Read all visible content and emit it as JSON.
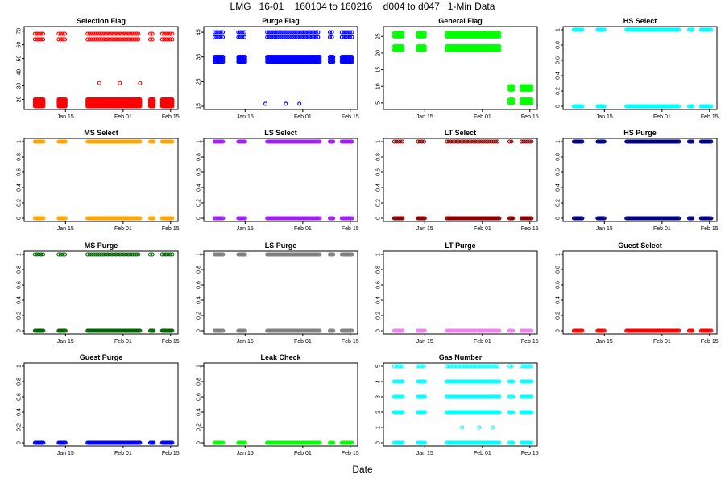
{
  "page_title": "LMG   16-01    160104 to 160216    d004 to d047   1-Min Data",
  "x_axis_label": "Date",
  "x_ticks": [
    {
      "label": "Jan 15",
      "value": 11
    },
    {
      "label": "Feb 01",
      "value": 28
    },
    {
      "label": "Feb 15",
      "value": 42
    }
  ],
  "x_range": [
    0,
    43
  ],
  "chart_data": [
    {
      "type": "scatter",
      "title": "Selection Flag",
      "color": "#ff0000",
      "ylim": [
        15,
        71
      ],
      "yticks": [
        20,
        30,
        40,
        50,
        60,
        70
      ],
      "levels": [
        {
          "y": 15,
          "dense": true
        },
        {
          "y": 16,
          "dense": true
        },
        {
          "y": 17,
          "dense": true
        },
        {
          "y": 18,
          "dense": true
        },
        {
          "y": 19,
          "dense": true
        },
        {
          "y": 20,
          "dense": true
        },
        {
          "y": 64,
          "dense": false
        },
        {
          "y": 68,
          "dense": false
        }
      ],
      "isolated": [
        [
          21,
          32
        ],
        [
          27,
          32
        ],
        [
          33,
          32
        ]
      ]
    },
    {
      "type": "scatter",
      "title": "Purge Flag",
      "color": "#0000ff",
      "ylim": [
        15,
        46
      ],
      "yticks": [
        15,
        25,
        35,
        45
      ],
      "levels": [
        {
          "y": 33,
          "dense": true
        },
        {
          "y": 34,
          "dense": true
        },
        {
          "y": 35,
          "dense": true
        },
        {
          "y": 43,
          "dense": false
        },
        {
          "y": 45,
          "dense": false
        }
      ],
      "isolated": [
        [
          17,
          16
        ],
        [
          23,
          16
        ],
        [
          27,
          16
        ]
      ]
    },
    {
      "type": "scatter",
      "title": "General Flag",
      "color": "#00ff00",
      "ylim": [
        4,
        27
      ],
      "yticks": [
        5,
        10,
        15,
        20,
        25
      ],
      "levels": [
        {
          "y": 21,
          "dense": true
        },
        {
          "y": 22,
          "dense": true
        },
        {
          "y": 25,
          "dense": true
        },
        {
          "y": 26,
          "dense": true
        }
      ],
      "late_levels": [
        5,
        6,
        9,
        10
      ],
      "isolated": []
    },
    {
      "type": "scatter",
      "title": "HS Select",
      "color": "#00ffff",
      "ylim": [
        0,
        1
      ],
      "yticks": [
        0,
        0.2,
        0.4,
        0.6,
        0.8,
        1
      ],
      "levels": [
        {
          "y": 0,
          "dense": true
        },
        {
          "y": 1,
          "dense": true
        }
      ],
      "isolated": []
    },
    {
      "type": "scatter",
      "title": "MS Select",
      "color": "#ffa500",
      "ylim": [
        0,
        1
      ],
      "yticks": [
        0,
        0.2,
        0.4,
        0.6,
        0.8,
        1
      ],
      "levels": [
        {
          "y": 0,
          "dense": true
        },
        {
          "y": 1,
          "dense": true
        }
      ],
      "isolated": []
    },
    {
      "type": "scatter",
      "title": "LS Select",
      "color": "#a020f0",
      "ylim": [
        0,
        1
      ],
      "yticks": [
        0,
        0.2,
        0.4,
        0.6,
        0.8,
        1
      ],
      "levels": [
        {
          "y": 0,
          "dense": true
        },
        {
          "y": 1,
          "dense": true
        }
      ],
      "isolated": []
    },
    {
      "type": "scatter",
      "title": "LT Select",
      "color": "#8b0000",
      "ylim": [
        0,
        1
      ],
      "yticks": [
        0,
        0.2,
        0.4,
        0.6,
        0.8,
        1
      ],
      "levels": [
        {
          "y": 0,
          "dense": true
        },
        {
          "y": 1,
          "dense": false
        }
      ],
      "isolated": []
    },
    {
      "type": "scatter",
      "title": "HS Purge",
      "color": "#000080",
      "ylim": [
        0,
        1
      ],
      "yticks": [
        0,
        0.2,
        0.4,
        0.6,
        0.8,
        1
      ],
      "levels": [
        {
          "y": 0,
          "dense": true
        },
        {
          "y": 1,
          "dense": true
        }
      ],
      "isolated": []
    },
    {
      "type": "scatter",
      "title": "MS Purge",
      "color": "#006400",
      "ylim": [
        0,
        1
      ],
      "yticks": [
        0,
        0.2,
        0.4,
        0.6,
        0.8,
        1
      ],
      "levels": [
        {
          "y": 0,
          "dense": true
        },
        {
          "y": 1,
          "dense": false
        }
      ],
      "isolated": []
    },
    {
      "type": "scatter",
      "title": "LS Purge",
      "color": "#808080",
      "ylim": [
        0,
        1
      ],
      "yticks": [
        0,
        0.2,
        0.4,
        0.6,
        0.8,
        1
      ],
      "levels": [
        {
          "y": 0,
          "dense": true
        },
        {
          "y": 1,
          "dense": true
        }
      ],
      "isolated": []
    },
    {
      "type": "scatter",
      "title": "LT Purge",
      "color": "#ee82ee",
      "ylim": [
        0,
        1
      ],
      "yticks": [
        0,
        0.2,
        0.4,
        0.6,
        0.8,
        1
      ],
      "levels": [
        {
          "y": 0,
          "dense": true
        }
      ],
      "isolated": []
    },
    {
      "type": "scatter",
      "title": "Guest Select",
      "color": "#ff0000",
      "ylim": [
        0,
        1
      ],
      "yticks": [
        0,
        0.2,
        0.4,
        0.6,
        0.8,
        1
      ],
      "levels": [
        {
          "y": 0,
          "dense": true
        }
      ],
      "isolated": []
    },
    {
      "type": "scatter",
      "title": "Guest Purge",
      "color": "#0000ff",
      "ylim": [
        0,
        1
      ],
      "yticks": [
        0,
        0.2,
        0.4,
        0.6,
        0.8,
        1
      ],
      "levels": [
        {
          "y": 0,
          "dense": true
        }
      ],
      "isolated": []
    },
    {
      "type": "scatter",
      "title": "Leak Check",
      "color": "#00ff00",
      "ylim": [
        0,
        1
      ],
      "yticks": [
        0,
        0.2,
        0.4,
        0.6,
        0.8,
        1
      ],
      "levels": [
        {
          "y": 0,
          "dense": true
        }
      ],
      "isolated": []
    },
    {
      "type": "scatter",
      "title": "Gas Number",
      "color": "#00ffff",
      "ylim": [
        0,
        5
      ],
      "yticks": [
        0,
        1,
        2,
        3,
        4,
        5
      ],
      "levels": [
        {
          "y": 0,
          "dense": true
        },
        {
          "y": 2,
          "dense": true
        },
        {
          "y": 3,
          "dense": true
        },
        {
          "y": 4,
          "dense": true
        },
        {
          "y": 5,
          "dense": false
        }
      ],
      "isolated": [
        [
          22,
          1
        ],
        [
          27,
          1
        ],
        [
          31,
          1
        ]
      ]
    }
  ]
}
